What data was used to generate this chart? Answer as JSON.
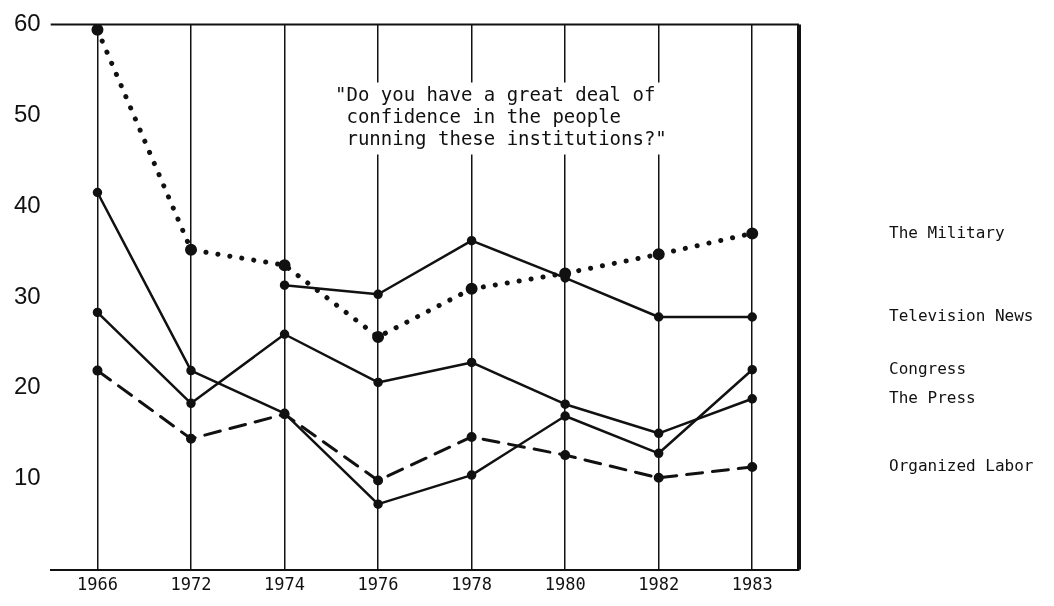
{
  "chart_data": {
    "type": "line",
    "categories": [
      "1966",
      "1972",
      "1974",
      "1976",
      "1978",
      "1980",
      "1982",
      "1983"
    ],
    "series": [
      {
        "name": "The Military",
        "color": "#111111",
        "line_style": "dotted",
        "values": [
          59.4,
          35.2,
          33.5,
          25.6,
          30.9,
          32.6,
          34.7,
          37
        ]
      },
      {
        "name": "Television News",
        "color": "#111111",
        "line_style": "solid",
        "values": [
          null,
          null,
          31.3,
          30.3,
          36.2,
          32.1,
          27.8,
          27.8
        ]
      },
      {
        "name": "Congress",
        "color": "#111111",
        "line_style": "solid",
        "values": [
          41.5,
          21.9,
          17.2,
          7.2,
          10.4,
          16.9,
          12.8,
          22
        ]
      },
      {
        "name": "The Press",
        "color": "#111111",
        "line_style": "solid",
        "values": [
          28.3,
          18.3,
          25.9,
          20.6,
          22.8,
          18.2,
          15,
          18.8
        ]
      },
      {
        "name": "Organized Labor",
        "color": "#111111",
        "line_style": "dashed",
        "values": [
          21.9,
          14.4,
          17.1,
          9.8,
          14.6,
          12.6,
          10.1,
          11.3
        ]
      }
    ],
    "ylim": [
      0,
      60
    ],
    "yticks": [
      10,
      20,
      30,
      40,
      50,
      60
    ],
    "grid": "x",
    "legend": false,
    "marker": "circle",
    "annotations": [
      "\"Do you have a great deal of\n confidence in the people\n running these institutions?\""
    ]
  }
}
